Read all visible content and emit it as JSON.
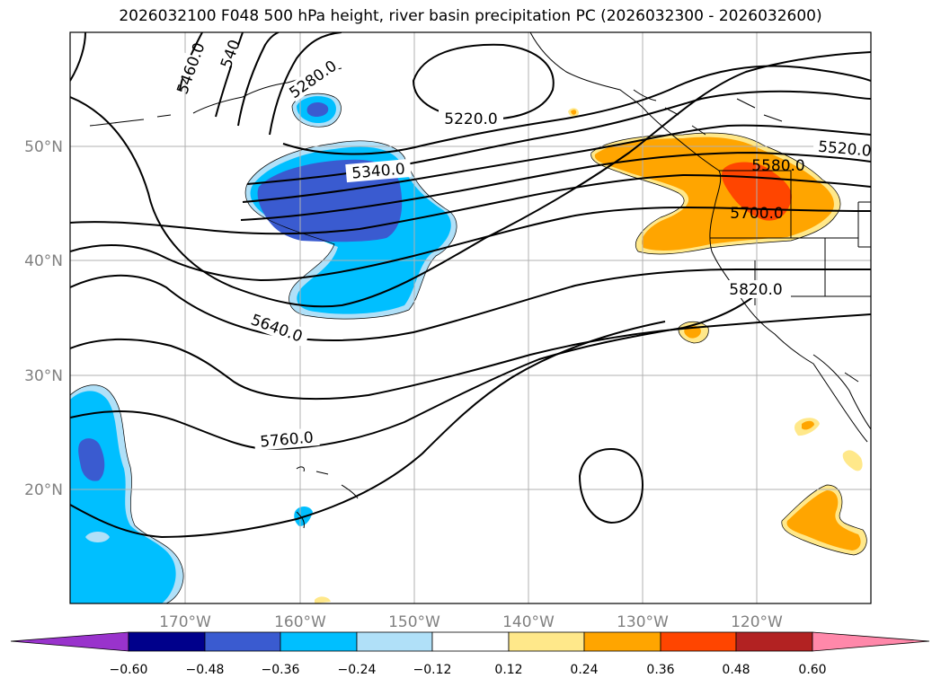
{
  "title": "2026032100 F048 500 hPa height, river basin precipitation PC (2026032300 - 2026032600)",
  "map": {
    "lon_ticks": [
      "170°W",
      "160°W",
      "150°W",
      "140°W",
      "130°W",
      "120°W"
    ],
    "lat_ticks": [
      "50°N",
      "40°N",
      "30°N",
      "20°N"
    ],
    "contour_labels": [
      "5460.0",
      "540",
      "5280.0",
      "5220.0",
      "5340.0",
      "5520.0",
      "5580.0",
      "5700.0",
      "5640.0",
      "5820.0",
      "5760.0"
    ],
    "colors": {
      "grid": "#b0b0b0",
      "coast": "#000000",
      "dark_blue": "#3a5bd0",
      "mid_blue": "#00bfff",
      "light_blue": "#b0e0f8",
      "light_yellow": "#ffe88a",
      "orange": "#ffa500",
      "red_orange": "#ff4500"
    }
  },
  "colorbar": {
    "colors": [
      "#9933cc",
      "#00008b",
      "#3a5bd0",
      "#00bfff",
      "#b0e0f8",
      "#ffffff",
      "#ffe88a",
      "#ffa500",
      "#ff4500",
      "#b22222",
      "#ff88aa"
    ],
    "tick_labels": [
      "−0.60",
      "−0.48",
      "−0.36",
      "−0.24",
      "−0.12",
      "0.12",
      "0.24",
      "0.36",
      "0.48",
      "0.60"
    ]
  }
}
